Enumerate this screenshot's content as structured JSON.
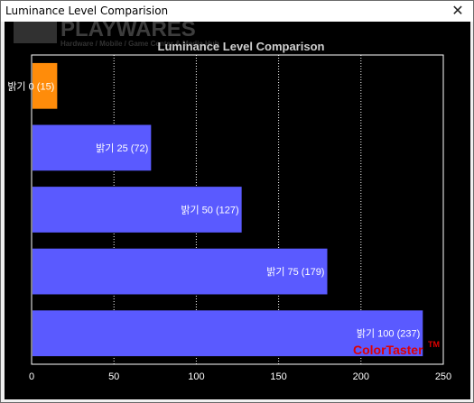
{
  "window": {
    "title": "Luminance Level Comparision",
    "close_glyph": "✕"
  },
  "watermark": {
    "logo_text": "PLAYWARES",
    "tagline": "Hardware / Mobile / Game Center & Media Hub"
  },
  "brand": {
    "name": "ColorTaster",
    "tm": "TM",
    "color": "#e00000"
  },
  "colors": {
    "highlight_bar": "#ff8c0a",
    "bar": "#5a5aff",
    "background": "#000000",
    "axis": "#ffffff",
    "grid": "#ffffff"
  },
  "chart_data": {
    "type": "bar",
    "orientation": "horizontal",
    "title": "Luminance Level Comparison",
    "categories": [
      "밝기 0 (15)",
      "밝기 25 (72)",
      "밝기 50 (127)",
      "밝기 75 (179)",
      "밝기 100 (237)"
    ],
    "values": [
      15,
      72,
      127,
      179,
      237
    ],
    "highlight_index": 0,
    "xlim": [
      0,
      250
    ],
    "xticks": [
      0,
      50,
      100,
      150,
      200,
      250
    ],
    "grid": "vertical dotted",
    "legend": "none"
  }
}
